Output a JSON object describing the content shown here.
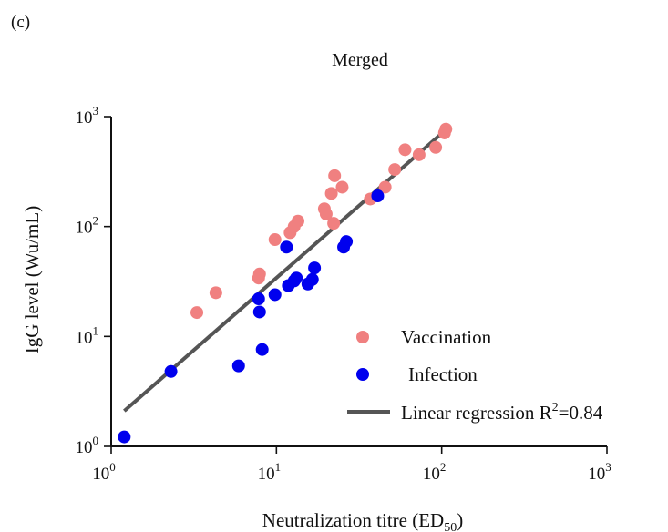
{
  "panel_label": "(c)",
  "chart_data": {
    "type": "scatter",
    "title": "Merged",
    "xlabel": "Neutralization titre (ED",
    "xlabel_sub": "50",
    "xlabel_tail": ")",
    "ylabel": "IgG level (Wu/mL)",
    "x_scale": "log",
    "y_scale": "log",
    "xlim": [
      1,
      1000
    ],
    "ylim": [
      1,
      1000
    ],
    "x_ticks": [
      {
        "value": 1,
        "base": "10",
        "exp": "0"
      },
      {
        "value": 10,
        "base": "10",
        "exp": "1"
      },
      {
        "value": 100,
        "base": "10",
        "exp": "2"
      },
      {
        "value": 1000,
        "base": "10",
        "exp": "3"
      }
    ],
    "y_ticks": [
      {
        "value": 1,
        "base": "10",
        "exp": "0"
      },
      {
        "value": 10,
        "base": "10",
        "exp": "1"
      },
      {
        "value": 100,
        "base": "10",
        "exp": "2"
      },
      {
        "value": 1000,
        "base": "10",
        "exp": "3"
      }
    ],
    "grid": false,
    "legend_position": "bottom-right",
    "series": [
      {
        "name": "Vaccination",
        "color": "#f08080",
        "points": [
          [
            3.3,
            16.5
          ],
          [
            4.3,
            25
          ],
          [
            7.8,
            34
          ],
          [
            7.9,
            37
          ],
          [
            9.8,
            76
          ],
          [
            12.1,
            88
          ],
          [
            12.8,
            100
          ],
          [
            13.5,
            112
          ],
          [
            19.5,
            145
          ],
          [
            20.0,
            130
          ],
          [
            21.5,
            200
          ],
          [
            22.5,
            290
          ],
          [
            22.2,
            107
          ],
          [
            25.0,
            228
          ],
          [
            37.0,
            178
          ],
          [
            45.5,
            228
          ],
          [
            52.0,
            330
          ],
          [
            60.0,
            500
          ],
          [
            73.0,
            450
          ],
          [
            92.0,
            525
          ],
          [
            104.0,
            710
          ],
          [
            106.0,
            770
          ]
        ]
      },
      {
        "name": "Infection",
        "color": "#0000ee",
        "points": [
          [
            1.2,
            1.22
          ],
          [
            2.3,
            4.8
          ],
          [
            5.9,
            5.4
          ],
          [
            8.2,
            7.6
          ],
          [
            7.9,
            16.7
          ],
          [
            7.8,
            22
          ],
          [
            9.8,
            24
          ],
          [
            11.5,
            65
          ],
          [
            11.8,
            29
          ],
          [
            12.8,
            32
          ],
          [
            13.2,
            34
          ],
          [
            15.5,
            30
          ],
          [
            16.5,
            33
          ],
          [
            17.0,
            42
          ],
          [
            25.5,
            65
          ],
          [
            26.5,
            73
          ],
          [
            41.0,
            190
          ]
        ]
      },
      {
        "name": "Linear regression R",
        "name_sup": "2",
        "name_tail": "=0.84",
        "type": "line",
        "color": "#555555",
        "points": [
          [
            1.2,
            2.1
          ],
          [
            105,
            750
          ]
        ]
      }
    ]
  }
}
